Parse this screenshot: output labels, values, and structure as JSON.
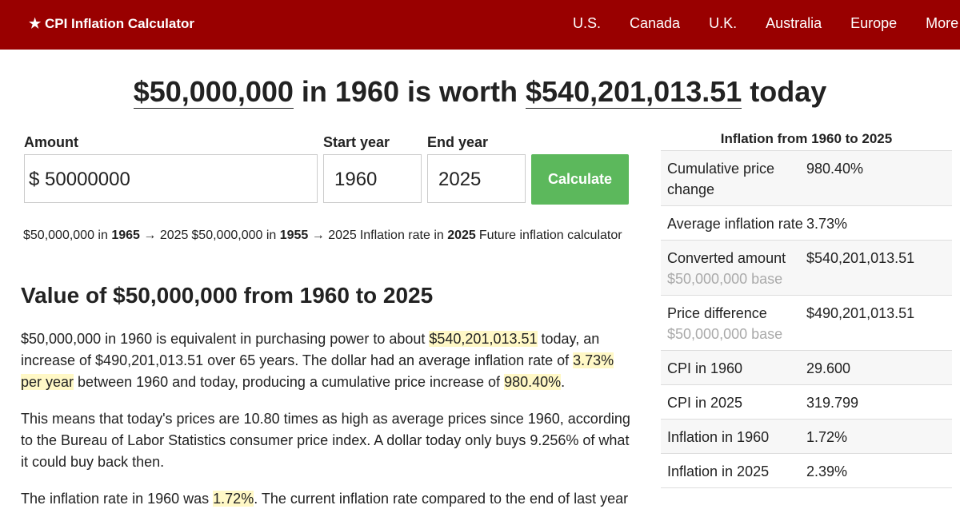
{
  "nav": {
    "brand": "★ CPI Inflation Calculator",
    "links": [
      "U.S.",
      "Canada",
      "U.K.",
      "Australia",
      "Europe",
      "More"
    ]
  },
  "headline": {
    "amount": "$50,000,000",
    "middle": " in 1960 is worth ",
    "result": "$540,201,013.51",
    "end": " today"
  },
  "form": {
    "amount_label": "Amount",
    "start_label": "Start year",
    "end_label": "End year",
    "currency": "$",
    "amount": "50000000",
    "start_year": "1960",
    "end_year": "2025",
    "button": "Calculate"
  },
  "pills": [
    {
      "parts": [
        "$50,000,000 in ",
        "1965",
        " → 2025"
      ]
    },
    {
      "parts": [
        "$50,000,000 in ",
        "1955",
        " → 2025"
      ]
    },
    {
      "parts": [
        "Inflation rate in ",
        "2025"
      ]
    },
    {
      "parts": [
        "Future inflation calculator"
      ]
    }
  ],
  "section": {
    "heading": "Value of $50,000,000 from 1960 to 2025",
    "paragraphs": [
      [
        {
          "text": "$50,000,000 in 1960 is equivalent in purchasing power to about ",
          "highlight": false
        },
        {
          "text": "$540,201,013.51",
          "highlight": true
        },
        {
          "text": " today, an increase of $490,201,013.51 over 65 years. The dollar had an average inflation rate of ",
          "highlight": false
        },
        {
          "text": "3.73% per year",
          "highlight": true
        },
        {
          "text": " between 1960 and today, producing a cumulative price increase of ",
          "highlight": false
        },
        {
          "text": "980.40%",
          "highlight": true
        },
        {
          "text": ".",
          "highlight": false
        }
      ],
      [
        {
          "text": "This means that today's prices are 10.80 times as high as average prices since 1960, according to the Bureau of Labor Statistics consumer price index. A dollar today only buys 9.256% of what it could buy back then.",
          "highlight": false
        }
      ],
      [
        {
          "text": "The inflation rate in 1960 was ",
          "highlight": false
        },
        {
          "text": "1.72%",
          "highlight": true
        },
        {
          "text": ". The current inflation rate compared to the end of last year",
          "highlight": false
        }
      ]
    ]
  },
  "sidebar": {
    "title": "Inflation from 1960 to 2025",
    "rows": [
      {
        "label": "Cumulative price change",
        "value": "980.40%"
      },
      {
        "label": "Average inflation rate",
        "value": "3.73%"
      },
      {
        "label": "Converted amount",
        "note": "$50,000,000 base",
        "value": "$540,201,013.51"
      },
      {
        "label": "Price difference",
        "note": "$50,000,000 base",
        "value": "$490,201,013.51"
      },
      {
        "label": "CPI in 1960",
        "value": "29.600"
      },
      {
        "label": "CPI in 2025",
        "value": "319.799"
      },
      {
        "label": "Inflation in 1960",
        "value": "1.72%"
      },
      {
        "label": "Inflation in 2025",
        "value": "2.39%"
      }
    ]
  }
}
